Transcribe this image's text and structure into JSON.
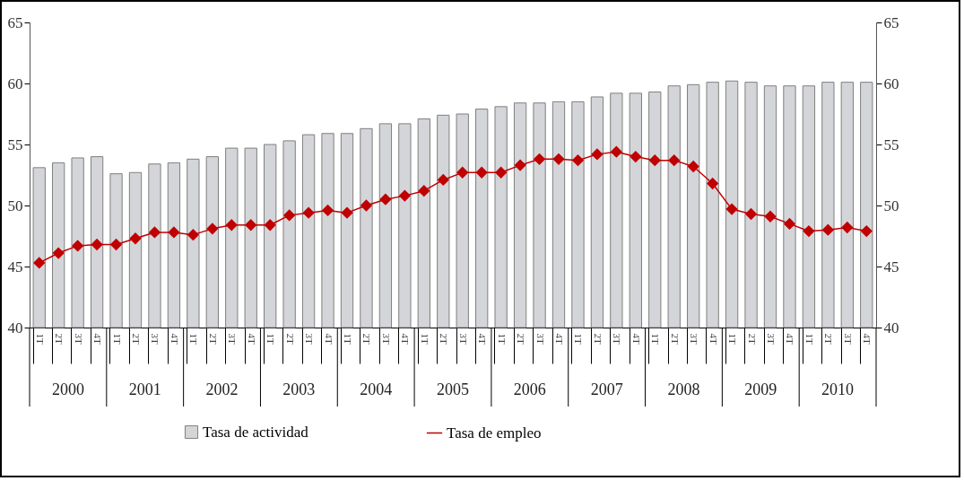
{
  "chart_data": {
    "type": "bar",
    "categories": [
      "1T",
      "2T",
      "3T",
      "4T",
      "1T",
      "2T",
      "3T",
      "4T",
      "1T",
      "2T",
      "3T",
      "4T",
      "1T",
      "2T",
      "3T",
      "4T",
      "1T",
      "2T",
      "3T",
      "4T",
      "1T",
      "2T",
      "3T",
      "4T",
      "1T",
      "2T",
      "3T",
      "4T",
      "1T",
      "2T",
      "3T",
      "4T",
      "1T",
      "2T",
      "3T",
      "4T",
      "1T",
      "2T",
      "3T",
      "4T",
      "1T",
      "2T",
      "3T",
      "4T"
    ],
    "annotations": [
      "2000",
      "2001",
      "2002",
      "2003",
      "2004",
      "2005",
      "2006",
      "2007",
      "2008",
      "2009",
      "2010"
    ],
    "series": [
      {
        "name": "Tasa de actividad",
        "color": "#d4d5d9",
        "values": [
          53.1,
          53.5,
          53.9,
          54.0,
          52.6,
          52.7,
          53.4,
          53.5,
          53.8,
          54.0,
          54.7,
          54.7,
          55.0,
          55.3,
          55.8,
          55.9,
          55.9,
          56.3,
          56.7,
          56.7,
          57.1,
          57.4,
          57.5,
          57.9,
          58.1,
          58.4,
          58.4,
          58.5,
          58.5,
          58.9,
          59.2,
          59.2,
          59.3,
          59.8,
          59.9,
          60.1,
          60.2,
          60.1,
          59.8,
          59.8,
          59.8,
          60.1,
          60.1,
          60.1
        ]
      },
      {
        "name": "Tasa de empleo",
        "type": "line",
        "color": "#c00000",
        "values": [
          45.3,
          46.1,
          46.7,
          46.8,
          46.8,
          47.3,
          47.8,
          47.8,
          47.6,
          48.1,
          48.4,
          48.4,
          48.4,
          49.2,
          49.4,
          49.6,
          49.4,
          50.0,
          50.5,
          50.8,
          51.2,
          52.1,
          52.7,
          52.7,
          52.7,
          53.3,
          53.8,
          53.8,
          53.7,
          54.2,
          54.4,
          54.0,
          53.7,
          53.7,
          53.2,
          51.8,
          49.7,
          49.3,
          49.1,
          48.5,
          47.9,
          48.0,
          48.2,
          47.9
        ]
      }
    ],
    "ylim": [
      40,
      65
    ],
    "yticks": [
      40,
      45,
      50,
      55,
      60,
      65
    ],
    "y2lim": [
      40,
      65
    ],
    "y2ticks": [
      40,
      45,
      50,
      55,
      60,
      65
    ],
    "grid": false,
    "legend": "bottom",
    "marker": "diamond",
    "line_style": "solid"
  }
}
